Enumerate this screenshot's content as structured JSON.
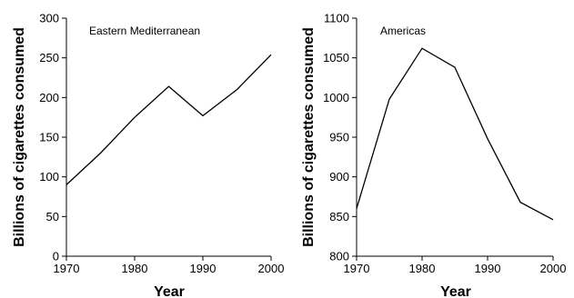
{
  "chart_data": [
    {
      "type": "line",
      "title": "Eastern Mediterranean",
      "xlabel": "Year",
      "ylabel": "Billions of cigarettes consumed",
      "xlim": [
        1970,
        2000
      ],
      "ylim": [
        0,
        300
      ],
      "xticks": [
        1970,
        1980,
        1990,
        2000
      ],
      "yticks": [
        0,
        50,
        100,
        150,
        200,
        250,
        300
      ],
      "grid": false,
      "x": [
        1970,
        1975,
        1980,
        1985,
        1990,
        1995,
        2000
      ],
      "values": [
        90,
        130,
        175,
        214,
        177,
        210,
        254
      ]
    },
    {
      "type": "line",
      "title": "Americas",
      "xlabel": "Year",
      "ylabel": "Billions of cigarettes consumed",
      "xlim": [
        1970,
        2000
      ],
      "ylim": [
        800,
        1100
      ],
      "xticks": [
        1970,
        1980,
        1990,
        2000
      ],
      "yticks": [
        800,
        850,
        900,
        950,
        1000,
        1050,
        1100
      ],
      "grid": false,
      "x": [
        1970,
        1975,
        1980,
        1985,
        1990,
        1995,
        2000
      ],
      "values": [
        860,
        998,
        1062,
        1038,
        948,
        868,
        846
      ]
    }
  ]
}
